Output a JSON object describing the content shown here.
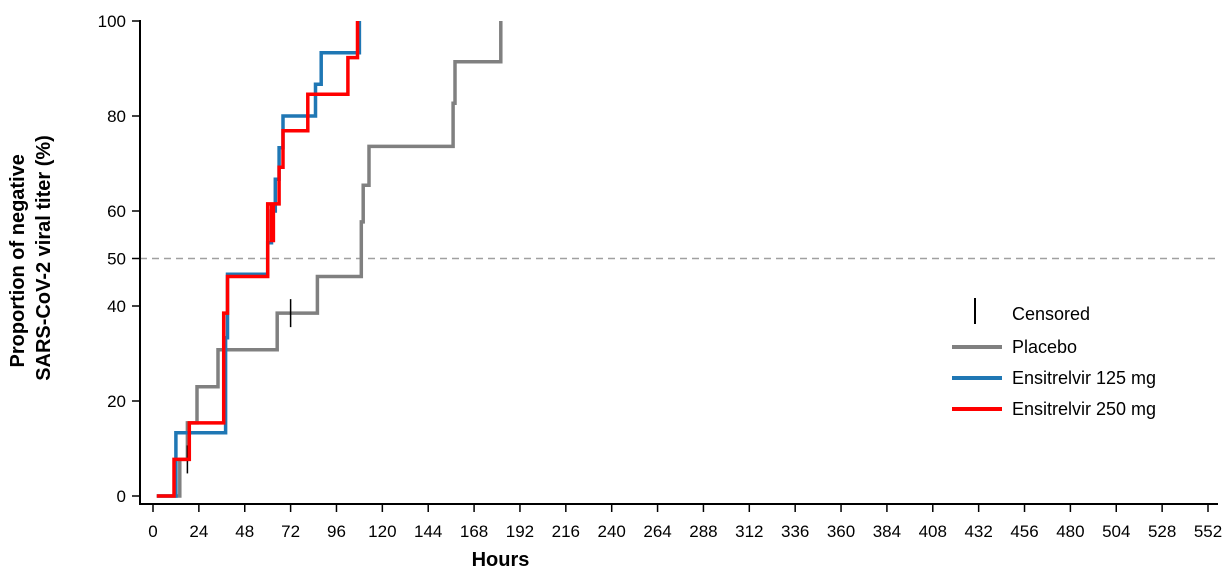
{
  "chart_data": {
    "type": "line",
    "step": true,
    "xlabel": "Hours",
    "ylabel_lines": [
      "Proportion of negative",
      "SARS-CoV-2 viral titer (%)"
    ],
    "xlim": [
      0,
      552
    ],
    "ylim": [
      0,
      100
    ],
    "xticks": [
      0,
      24,
      48,
      72,
      96,
      120,
      144,
      168,
      192,
      216,
      240,
      264,
      288,
      312,
      336,
      360,
      384,
      408,
      432,
      456,
      480,
      504,
      528,
      552
    ],
    "xtick_labels": [
      "0",
      "24",
      "48",
      "72",
      "96",
      "120",
      "144",
      "168",
      "192",
      "216",
      "240",
      "264",
      "288",
      "312",
      "336",
      "360",
      "384",
      "408",
      "432",
      "456",
      "480",
      "504",
      "528",
      "552"
    ],
    "yticks": [
      0,
      20,
      40,
      50,
      60,
      80,
      100
    ],
    "ytick_labels": [
      "0",
      "20",
      "40",
      "50",
      "60",
      "80",
      "100"
    ],
    "reference_line": {
      "y": 50,
      "style": "dashed",
      "color": "#a0a0a0"
    },
    "legend_position": "right",
    "legend": {
      "censored_label": "Censored",
      "items": [
        {
          "name": "Placebo",
          "color": "#808080"
        },
        {
          "name": "Ensitrelvir 125 mg",
          "color": "#1f77b4"
        },
        {
          "name": "Ensitrelvir 250 mg",
          "color": "#ff0000"
        }
      ]
    },
    "series": [
      {
        "name": "Placebo",
        "color": "#808080",
        "points": [
          [
            2,
            0
          ],
          [
            14,
            0
          ],
          [
            14,
            7.7
          ],
          [
            18,
            7.7
          ],
          [
            18,
            15.4
          ],
          [
            23,
            15.4
          ],
          [
            23,
            23
          ],
          [
            34,
            23
          ],
          [
            34,
            30.8
          ],
          [
            65,
            30.8
          ],
          [
            65,
            38.5
          ],
          [
            86,
            38.5
          ],
          [
            86,
            46.2
          ],
          [
            109,
            46.2
          ],
          [
            109,
            57.7
          ],
          [
            110,
            57.7
          ],
          [
            110,
            65.4
          ],
          [
            113,
            65.4
          ],
          [
            113,
            73.6
          ],
          [
            157,
            73.6
          ],
          [
            157,
            82.7
          ],
          [
            158,
            82.7
          ],
          [
            158,
            91.4
          ],
          [
            182,
            91.4
          ],
          [
            182,
            100
          ]
        ],
        "censored": [
          [
            18,
            7.7
          ],
          [
            72,
            38.5
          ]
        ]
      },
      {
        "name": "Ensitrelvir 125 mg",
        "color": "#1f77b4",
        "points": [
          [
            2,
            0
          ],
          [
            12,
            0
          ],
          [
            12,
            13.3
          ],
          [
            38,
            13.3
          ],
          [
            38,
            33.3
          ],
          [
            39,
            33.3
          ],
          [
            39,
            46.7
          ],
          [
            60,
            46.7
          ],
          [
            60,
            53.3
          ],
          [
            62,
            53.3
          ],
          [
            62,
            60
          ],
          [
            64,
            60
          ],
          [
            64,
            66.7
          ],
          [
            66,
            66.7
          ],
          [
            66,
            73.3
          ],
          [
            68,
            73.3
          ],
          [
            68,
            80
          ],
          [
            85,
            80
          ],
          [
            85,
            86.7
          ],
          [
            88,
            86.7
          ],
          [
            88,
            93.3
          ],
          [
            108,
            93.3
          ],
          [
            108,
            100
          ]
        ],
        "censored": []
      },
      {
        "name": "Ensitrelvir 250 mg",
        "color": "#ff0000",
        "points": [
          [
            2,
            0
          ],
          [
            11,
            0
          ],
          [
            11,
            7.7
          ],
          [
            19,
            7.7
          ],
          [
            19,
            15.4
          ],
          [
            37,
            15.4
          ],
          [
            37,
            38.5
          ],
          [
            39,
            38.5
          ],
          [
            39,
            46.2
          ],
          [
            60,
            46.2
          ],
          [
            60,
            61.5
          ],
          [
            62,
            61.5
          ],
          [
            62,
            53.8
          ],
          [
            63,
            53.8
          ],
          [
            63,
            61.5
          ],
          [
            66,
            61.5
          ],
          [
            66,
            69.2
          ],
          [
            68,
            69.2
          ],
          [
            68,
            76.9
          ],
          [
            81,
            76.9
          ],
          [
            81,
            84.6
          ],
          [
            102,
            84.6
          ],
          [
            102,
            92.3
          ],
          [
            107,
            92.3
          ],
          [
            107,
            100
          ]
        ],
        "censored": []
      }
    ]
  }
}
